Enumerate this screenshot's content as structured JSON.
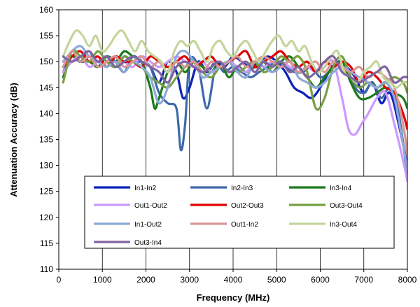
{
  "chart_data": {
    "type": "line",
    "xlabel": "Frequency (MHz)",
    "ylabel": "Attenuation Accuracy (dB)",
    "xlim": [
      0,
      8000
    ],
    "ylim": [
      110,
      160
    ],
    "xticks": [
      0,
      1000,
      2000,
      3000,
      4000,
      5000,
      6000,
      7000,
      8000
    ],
    "yticks": [
      110,
      115,
      120,
      125,
      130,
      135,
      140,
      145,
      150,
      155,
      160
    ],
    "grid": "vertical",
    "legend": "inside-bottom-left",
    "series": [
      {
        "name": "In1-In2",
        "color": "#0a22b8",
        "x": [
          100,
          300,
          500,
          700,
          900,
          1100,
          1300,
          1500,
          1700,
          1900,
          2100,
          2300,
          2500,
          2700,
          2850,
          3000,
          3200,
          3400,
          3600,
          3800,
          4000,
          4200,
          4400,
          4600,
          4800,
          5000,
          5200,
          5400,
          5600,
          5800,
          6000,
          6200,
          6400,
          6600,
          6800,
          7000,
          7200,
          7400,
          7600,
          7800,
          8000
        ],
        "y": [
          149,
          151,
          150,
          151,
          150,
          151,
          149,
          151,
          150,
          150,
          149,
          146,
          150,
          148,
          143,
          145,
          150,
          148,
          150,
          149,
          151,
          150,
          149,
          150,
          151,
          150,
          148,
          145,
          144,
          143,
          145,
          148,
          150,
          149,
          147,
          144,
          146,
          142,
          144,
          138,
          130
        ]
      },
      {
        "name": "In2-In3",
        "color": "#3e6aa8",
        "x": [
          100,
          300,
          500,
          700,
          900,
          1100,
          1300,
          1500,
          1700,
          1900,
          2100,
          2300,
          2500,
          2700,
          2800,
          2900,
          3000,
          3200,
          3400,
          3600,
          3800,
          4000,
          4200,
          4400,
          4600,
          4800,
          5000,
          5200,
          5400,
          5600,
          5800,
          6000,
          6200,
          6400,
          6600,
          6800,
          7000,
          7200,
          7400,
          7600,
          7800,
          8000
        ],
        "y": [
          148,
          151,
          150,
          152,
          149,
          151,
          150,
          148,
          151,
          150,
          149,
          144,
          142,
          141,
          133,
          138,
          150,
          149,
          141,
          149,
          148,
          149,
          148,
          147,
          148,
          149,
          150,
          149,
          148,
          148,
          149,
          147,
          148,
          150,
          149,
          145,
          144,
          146,
          143,
          145,
          140,
          128
        ]
      },
      {
        "name": "In3-In4",
        "color": "#1a7a1a",
        "x": [
          100,
          300,
          500,
          700,
          900,
          1100,
          1300,
          1500,
          1700,
          1900,
          2100,
          2200,
          2300,
          2500,
          2700,
          2900,
          3100,
          3300,
          3500,
          3700,
          3900,
          4100,
          4300,
          4500,
          4700,
          4900,
          5100,
          5300,
          5500,
          5700,
          5900,
          6100,
          6300,
          6500,
          6700,
          6900,
          7100,
          7300,
          7500,
          7700,
          7900,
          8000
        ],
        "y": [
          147,
          151,
          150,
          150,
          149,
          151,
          150,
          152,
          151,
          150,
          145,
          141,
          143,
          148,
          150,
          148,
          150,
          149,
          148,
          150,
          147,
          149,
          148,
          149,
          150,
          148,
          150,
          151,
          149,
          147,
          145,
          147,
          149,
          150,
          146,
          143,
          143,
          144,
          145,
          144,
          143,
          141
        ]
      },
      {
        "name": "Out1-Out2",
        "color": "#cc99ff",
        "x": [
          100,
          300,
          500,
          700,
          900,
          1100,
          1300,
          1500,
          1700,
          1900,
          2100,
          2300,
          2500,
          2700,
          2900,
          3100,
          3300,
          3500,
          3700,
          3900,
          4100,
          4300,
          4500,
          4700,
          4900,
          5100,
          5300,
          5500,
          5700,
          5900,
          6100,
          6300,
          6500,
          6650,
          6800,
          6950,
          7100,
          7300,
          7500,
          7700,
          7900,
          8000
        ],
        "y": [
          148,
          150,
          151,
          149,
          150,
          149,
          151,
          150,
          149,
          151,
          150,
          149,
          150,
          151,
          150,
          149,
          150,
          148,
          149,
          150,
          149,
          148,
          150,
          149,
          150,
          150,
          149,
          148,
          149,
          148,
          149,
          150,
          143,
          137,
          136,
          138,
          140,
          143,
          144,
          138,
          131,
          127
        ]
      },
      {
        "name": "Out2-Out3",
        "color": "#e00000",
        "x": [
          100,
          300,
          500,
          700,
          900,
          1100,
          1300,
          1500,
          1700,
          1900,
          2100,
          2300,
          2500,
          2700,
          2900,
          3100,
          3300,
          3500,
          3700,
          3900,
          4100,
          4300,
          4500,
          4700,
          4900,
          5100,
          5300,
          5500,
          5700,
          5900,
          6100,
          6300,
          6500,
          6700,
          6900,
          7100,
          7300,
          7500,
          7700,
          7900,
          8000
        ],
        "y": [
          149,
          151,
          152,
          150,
          151,
          149,
          151,
          150,
          150,
          149,
          151,
          150,
          149,
          150,
          151,
          149,
          150,
          151,
          149,
          150,
          151,
          152,
          149,
          150,
          151,
          152,
          150,
          149,
          150,
          148,
          150,
          149,
          150,
          149,
          146,
          148,
          147,
          145,
          144,
          140,
          137
        ]
      },
      {
        "name": "Out3-Out4",
        "color": "#77a043",
        "x": [
          100,
          300,
          500,
          700,
          900,
          1100,
          1300,
          1500,
          1700,
          1900,
          2100,
          2300,
          2500,
          2700,
          2900,
          3100,
          3300,
          3500,
          3700,
          3900,
          4100,
          4300,
          4500,
          4700,
          4900,
          5100,
          5300,
          5500,
          5700,
          5900,
          6100,
          6300,
          6500,
          6700,
          6900,
          7100,
          7300,
          7500,
          7700,
          7900,
          8000
        ],
        "y": [
          146,
          152,
          151,
          150,
          152,
          150,
          149,
          151,
          150,
          149,
          147,
          146,
          145,
          147,
          149,
          150,
          148,
          147,
          149,
          150,
          148,
          149,
          150,
          148,
          149,
          151,
          150,
          151,
          148,
          141,
          143,
          149,
          151,
          147,
          145,
          146,
          145,
          146,
          147,
          146,
          144
        ]
      },
      {
        "name": "In1-Out2",
        "color": "#8ea9d8",
        "x": [
          100,
          300,
          500,
          700,
          900,
          1100,
          1300,
          1500,
          1700,
          1900,
          2100,
          2300,
          2500,
          2700,
          2900,
          3100,
          3300,
          3500,
          3700,
          3900,
          4100,
          4300,
          4500,
          4700,
          4900,
          5100,
          5300,
          5500,
          5700,
          5900,
          6100,
          6300,
          6500,
          6700,
          6900,
          7100,
          7300,
          7500,
          7700,
          7900,
          8000
        ],
        "y": [
          150,
          152,
          153,
          151,
          150,
          149,
          150,
          148,
          150,
          149,
          147,
          142,
          145,
          151,
          152,
          150,
          147,
          148,
          149,
          150,
          148,
          147,
          150,
          149,
          148,
          149,
          150,
          147,
          146,
          145,
          146,
          148,
          149,
          148,
          147,
          146,
          145,
          146,
          143,
          134,
          129
        ]
      },
      {
        "name": "Out1-In2",
        "color": "#d99694",
        "x": [
          100,
          300,
          500,
          700,
          900,
          1100,
          1300,
          1500,
          1700,
          1900,
          2100,
          2300,
          2500,
          2700,
          2900,
          3100,
          3300,
          3500,
          3700,
          3900,
          4100,
          4300,
          4500,
          4700,
          4900,
          5100,
          5300,
          5500,
          5700,
          5900,
          6100,
          6300,
          6500,
          6700,
          6900,
          7100,
          7300,
          7500,
          7700,
          7900,
          8000
        ],
        "y": [
          149,
          152,
          150,
          151,
          149,
          150,
          151,
          149,
          150,
          151,
          149,
          150,
          148,
          150,
          149,
          150,
          148,
          150,
          149,
          150,
          151,
          149,
          150,
          151,
          150,
          149,
          150,
          148,
          149,
          150,
          148,
          150,
          149,
          148,
          149,
          147,
          148,
          147,
          145,
          138,
          132
        ]
      },
      {
        "name": "In3-Out4",
        "color": "#c3d69b",
        "x": [
          100,
          250,
          400,
          550,
          700,
          850,
          1000,
          1150,
          1300,
          1450,
          1600,
          1750,
          1900,
          2050,
          2200,
          2350,
          2500,
          2650,
          2800,
          2950,
          3100,
          3250,
          3400,
          3550,
          3700,
          3850,
          4000,
          4150,
          4300,
          4450,
          4600,
          4750,
          4900,
          5050,
          5200,
          5350,
          5500,
          5650,
          5800,
          5950,
          6100,
          6250,
          6400,
          6550,
          6700,
          6850,
          7000,
          7150,
          7300,
          7450,
          7600,
          7750,
          7900,
          8000
        ],
        "y": [
          151,
          154,
          156,
          155,
          153,
          155,
          152,
          153,
          155,
          156,
          154,
          152,
          154,
          152,
          151,
          150,
          148,
          152,
          154,
          153,
          154,
          152,
          150,
          153,
          154,
          152,
          151,
          153,
          154,
          152,
          150,
          152,
          154,
          155,
          153,
          154,
          152,
          153,
          150,
          148,
          149,
          151,
          152,
          148,
          147,
          146,
          148,
          149,
          150,
          147,
          146,
          145,
          146,
          146
        ]
      },
      {
        "name": "Out3-In4",
        "color": "#8064a2",
        "x": [
          100,
          300,
          500,
          700,
          900,
          1100,
          1300,
          1500,
          1700,
          1900,
          2100,
          2300,
          2500,
          2700,
          2900,
          3100,
          3300,
          3500,
          3700,
          3900,
          4100,
          4300,
          4500,
          4700,
          4900,
          5100,
          5300,
          5500,
          5700,
          5900,
          6100,
          6300,
          6500,
          6700,
          6900,
          7100,
          7300,
          7500,
          7700,
          7900,
          8000
        ],
        "y": [
          151,
          150,
          151,
          152,
          150,
          151,
          149,
          150,
          151,
          150,
          149,
          148,
          146,
          149,
          150,
          149,
          148,
          149,
          150,
          148,
          149,
          150,
          148,
          150,
          149,
          150,
          148,
          149,
          147,
          148,
          150,
          151,
          148,
          147,
          146,
          147,
          148,
          149,
          146,
          147,
          147
        ]
      }
    ]
  }
}
